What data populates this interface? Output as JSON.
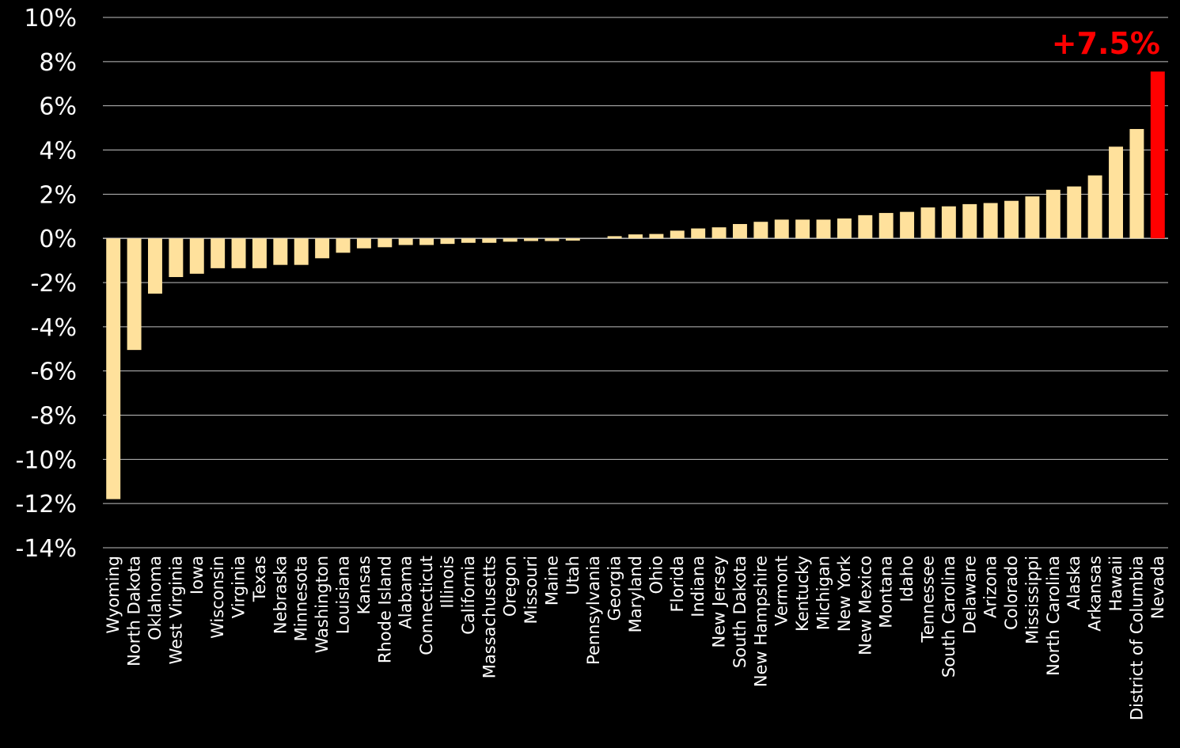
{
  "chart_data": {
    "type": "bar",
    "title": "",
    "xlabel": "",
    "ylabel": "",
    "ylim": [
      -14,
      10
    ],
    "yticks": [
      10,
      8,
      6,
      4,
      2,
      0,
      -2,
      -4,
      -6,
      -8,
      -10,
      -12,
      -14
    ],
    "ytick_labels": [
      "10%",
      "8%",
      "6%",
      "4%",
      "2%",
      "0%",
      "-2%",
      "-4%",
      "-6%",
      "-8%",
      "-10%",
      "-12%",
      "-14%"
    ],
    "grid": true,
    "categories": [
      "Wyoming",
      "North Dakota",
      "Oklahoma",
      "West Virginia",
      "Iowa",
      "Wisconsin",
      "Virginia",
      "Texas",
      "Nebraska",
      "Minnesota",
      "Washington",
      "Louisiana",
      "Kansas",
      "Rhode Island",
      "Alabama",
      "Connecticut",
      "Illinois",
      "California",
      "Massachusetts",
      "Oregon",
      "Missouri",
      "Maine",
      "Utah",
      "Pennsylvania",
      "Georgia",
      "Maryland",
      "Ohio",
      "Florida",
      "Indiana",
      "New Jersey",
      "South Dakota",
      "New Hampshire",
      "Vermont",
      "Kentucky",
      "Michigan",
      "New York",
      "New Mexico",
      "Montana",
      "Idaho",
      "Tennessee",
      "South Carolina",
      "Delaware",
      "Arizona",
      "Colorado",
      "Mississippi",
      "North Carolina",
      "Alaska",
      "Arkansas",
      "Hawaii",
      "District of Columbia",
      "Nevada"
    ],
    "values": [
      -11.8,
      -5.05,
      -2.5,
      -1.75,
      -1.6,
      -1.35,
      -1.35,
      -1.35,
      -1.2,
      -1.2,
      -0.9,
      -0.65,
      -0.45,
      -0.4,
      -0.3,
      -0.3,
      -0.25,
      -0.2,
      -0.2,
      -0.15,
      -0.12,
      -0.12,
      -0.1,
      0.0,
      0.1,
      0.18,
      0.2,
      0.35,
      0.45,
      0.5,
      0.65,
      0.75,
      0.85,
      0.85,
      0.85,
      0.9,
      1.05,
      1.15,
      1.2,
      1.4,
      1.45,
      1.55,
      1.6,
      1.7,
      1.9,
      2.2,
      2.35,
      2.85,
      4.15,
      4.95,
      7.55
    ],
    "colors": {
      "bar": "#ffe19c",
      "highlight": "#ff0000",
      "grid": "#bfbfbf",
      "text": "#ffffff",
      "background": "#000000"
    },
    "highlight_category": "Nevada",
    "annotation": {
      "text": "+7.5%",
      "color": "#ff0000"
    }
  }
}
